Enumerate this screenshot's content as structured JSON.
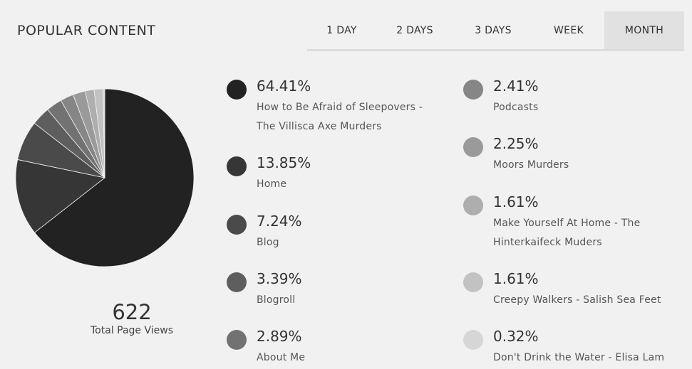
{
  "header": {
    "title": "POPULAR CONTENT"
  },
  "tabs": [
    {
      "label": "1 DAY",
      "active": false
    },
    {
      "label": "2 DAYS",
      "active": false
    },
    {
      "label": "3 DAYS",
      "active": false
    },
    {
      "label": "WEEK",
      "active": false
    },
    {
      "label": "MONTH",
      "active": true
    }
  ],
  "summary": {
    "total_views": "622",
    "total_label": "Total Page Views"
  },
  "legend": [
    {
      "pct": "64.41%",
      "label": "How to Be Afraid of Sleepovers - The Villisca Axe Murders"
    },
    {
      "pct": "13.85%",
      "label": "Home"
    },
    {
      "pct": "7.24%",
      "label": "Blog"
    },
    {
      "pct": "3.39%",
      "label": "Blogroll"
    },
    {
      "pct": "2.89%",
      "label": "About Me"
    },
    {
      "pct": "2.41%",
      "label": "Podcasts"
    },
    {
      "pct": "2.25%",
      "label": "Moors Murders"
    },
    {
      "pct": "1.61%",
      "label": "Make Yourself At Home - The Hinterkaifeck Muders"
    },
    {
      "pct": "1.61%",
      "label": "Creepy Walkers - Salish Sea Feet"
    },
    {
      "pct": "0.32%",
      "label": "Don't Drink the Water - Elisa Lam"
    }
  ],
  "chart_data": {
    "type": "pie",
    "title": "POPULAR CONTENT",
    "categories": [
      "How to Be Afraid of Sleepovers - The Villisca Axe Murders",
      "Home",
      "Blog",
      "Blogroll",
      "About Me",
      "Podcasts",
      "Moors Murders",
      "Make Yourself At Home - The Hinterkaifeck Muders",
      "Creepy Walkers - Salish Sea Feet",
      "Don't Drink the Water - Elisa Lam"
    ],
    "values": [
      64.41,
      13.85,
      7.24,
      3.39,
      2.89,
      2.41,
      2.25,
      1.61,
      1.61,
      0.32
    ],
    "colors": [
      "#222222",
      "#363636",
      "#4a4a4a",
      "#5e5e5e",
      "#727272",
      "#868686",
      "#9a9a9a",
      "#aeaeae",
      "#c2c2c2",
      "#d6d6d6"
    ],
    "total": 622
  }
}
